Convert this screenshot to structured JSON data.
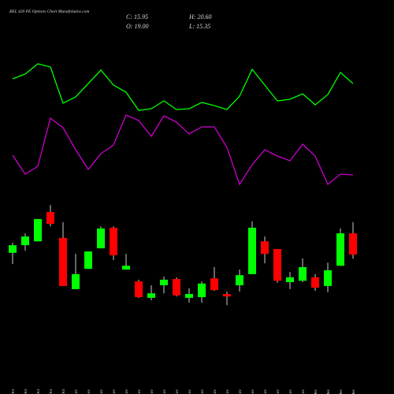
{
  "chart_data": {
    "type": "candlestick",
    "title": "BEL 420 PE Options Chart MunafaSutra.com",
    "ohlc_labels": {
      "close": "C: 15.95",
      "high": "H: 20.60",
      "open": "O: 19.00",
      "low": "L: 15.35"
    },
    "categories": [
      "27 Oct",
      "28 Oct",
      "29 Oct",
      "30 Oct",
      "31 Oct",
      "03 Nov",
      "04 Nov",
      "05 Nov",
      "06 Nov",
      "07 Nov",
      "11 Nov",
      "12 Nov",
      "13 Nov",
      "14 Nov",
      "17 Nov",
      "18 Nov",
      "19 Nov",
      "20 Nov",
      "21 Nov",
      "24 Nov",
      "25 Nov",
      "26 Nov",
      "27 Nov",
      "28 Nov",
      "01 Dec",
      "02 Dec",
      "03 Dec",
      "04 Dec"
    ],
    "open": [
      16.2,
      17.3,
      17.85,
      22.05,
      18.35,
      11.0,
      13.9,
      16.85,
      19.8,
      13.8,
      12.1,
      9.75,
      11.55,
      12.45,
      9.75,
      9.85,
      12.55,
      10.3,
      11.55,
      13.15,
      17.85,
      16.75,
      12.0,
      12.2,
      12.7,
      11.45,
      14.35,
      19.0
    ],
    "high": [
      17.65,
      19.0,
      21.05,
      23.05,
      20.6,
      16.05,
      16.4,
      20.0,
      20.0,
      16.05,
      12.35,
      11.55,
      12.8,
      12.7,
      11.1,
      12.1,
      14.15,
      10.65,
      13.8,
      20.7,
      18.55,
      16.75,
      13.45,
      15.4,
      13.15,
      14.8,
      19.7,
      20.6
    ],
    "low": [
      14.6,
      16.5,
      17.85,
      20.0,
      11.45,
      11.0,
      13.9,
      16.85,
      15.15,
      13.8,
      9.75,
      9.4,
      10.4,
      9.95,
      9.05,
      9.05,
      10.75,
      8.7,
      10.65,
      13.15,
      14.7,
      11.9,
      11.0,
      12.0,
      10.75,
      10.55,
      14.35,
      15.35
    ],
    "close": [
      17.3,
      18.55,
      21.05,
      20.35,
      11.45,
      13.15,
      16.4,
      19.7,
      15.85,
      14.35,
      9.85,
      10.4,
      12.35,
      10.1,
      10.3,
      11.8,
      10.85,
      9.95,
      13.0,
      19.8,
      16.05,
      12.2,
      12.7,
      14.15,
      11.2,
      13.7,
      19.0,
      15.95
    ],
    "up_color": "#00ff00",
    "down_color": "#ff0000",
    "ylim": [
      5,
      25
    ],
    "indicators": {
      "ylim": [
        0,
        100
      ],
      "series": [
        {
          "color": "#00ff00",
          "values": [
            75,
            78,
            84.5,
            82.5,
            59.5,
            63.5,
            72,
            80.5,
            71,
            66.5,
            55,
            56,
            61,
            55.5,
            56,
            60,
            58,
            55.5,
            64,
            81,
            71,
            61,
            62,
            65.5,
            58.5,
            65,
            79,
            72
          ]
        },
        {
          "color": "#cc00cc",
          "values": [
            26.5,
            14.5,
            19.5,
            50,
            44,
            30,
            17.5,
            27.5,
            33,
            52,
            48.5,
            38.5,
            51.5,
            47.5,
            40,
            44.5,
            44.5,
            31.5,
            8,
            20.5,
            30,
            26,
            23,
            33.5,
            26,
            8,
            14.5,
            14
          ]
        }
      ]
    }
  }
}
